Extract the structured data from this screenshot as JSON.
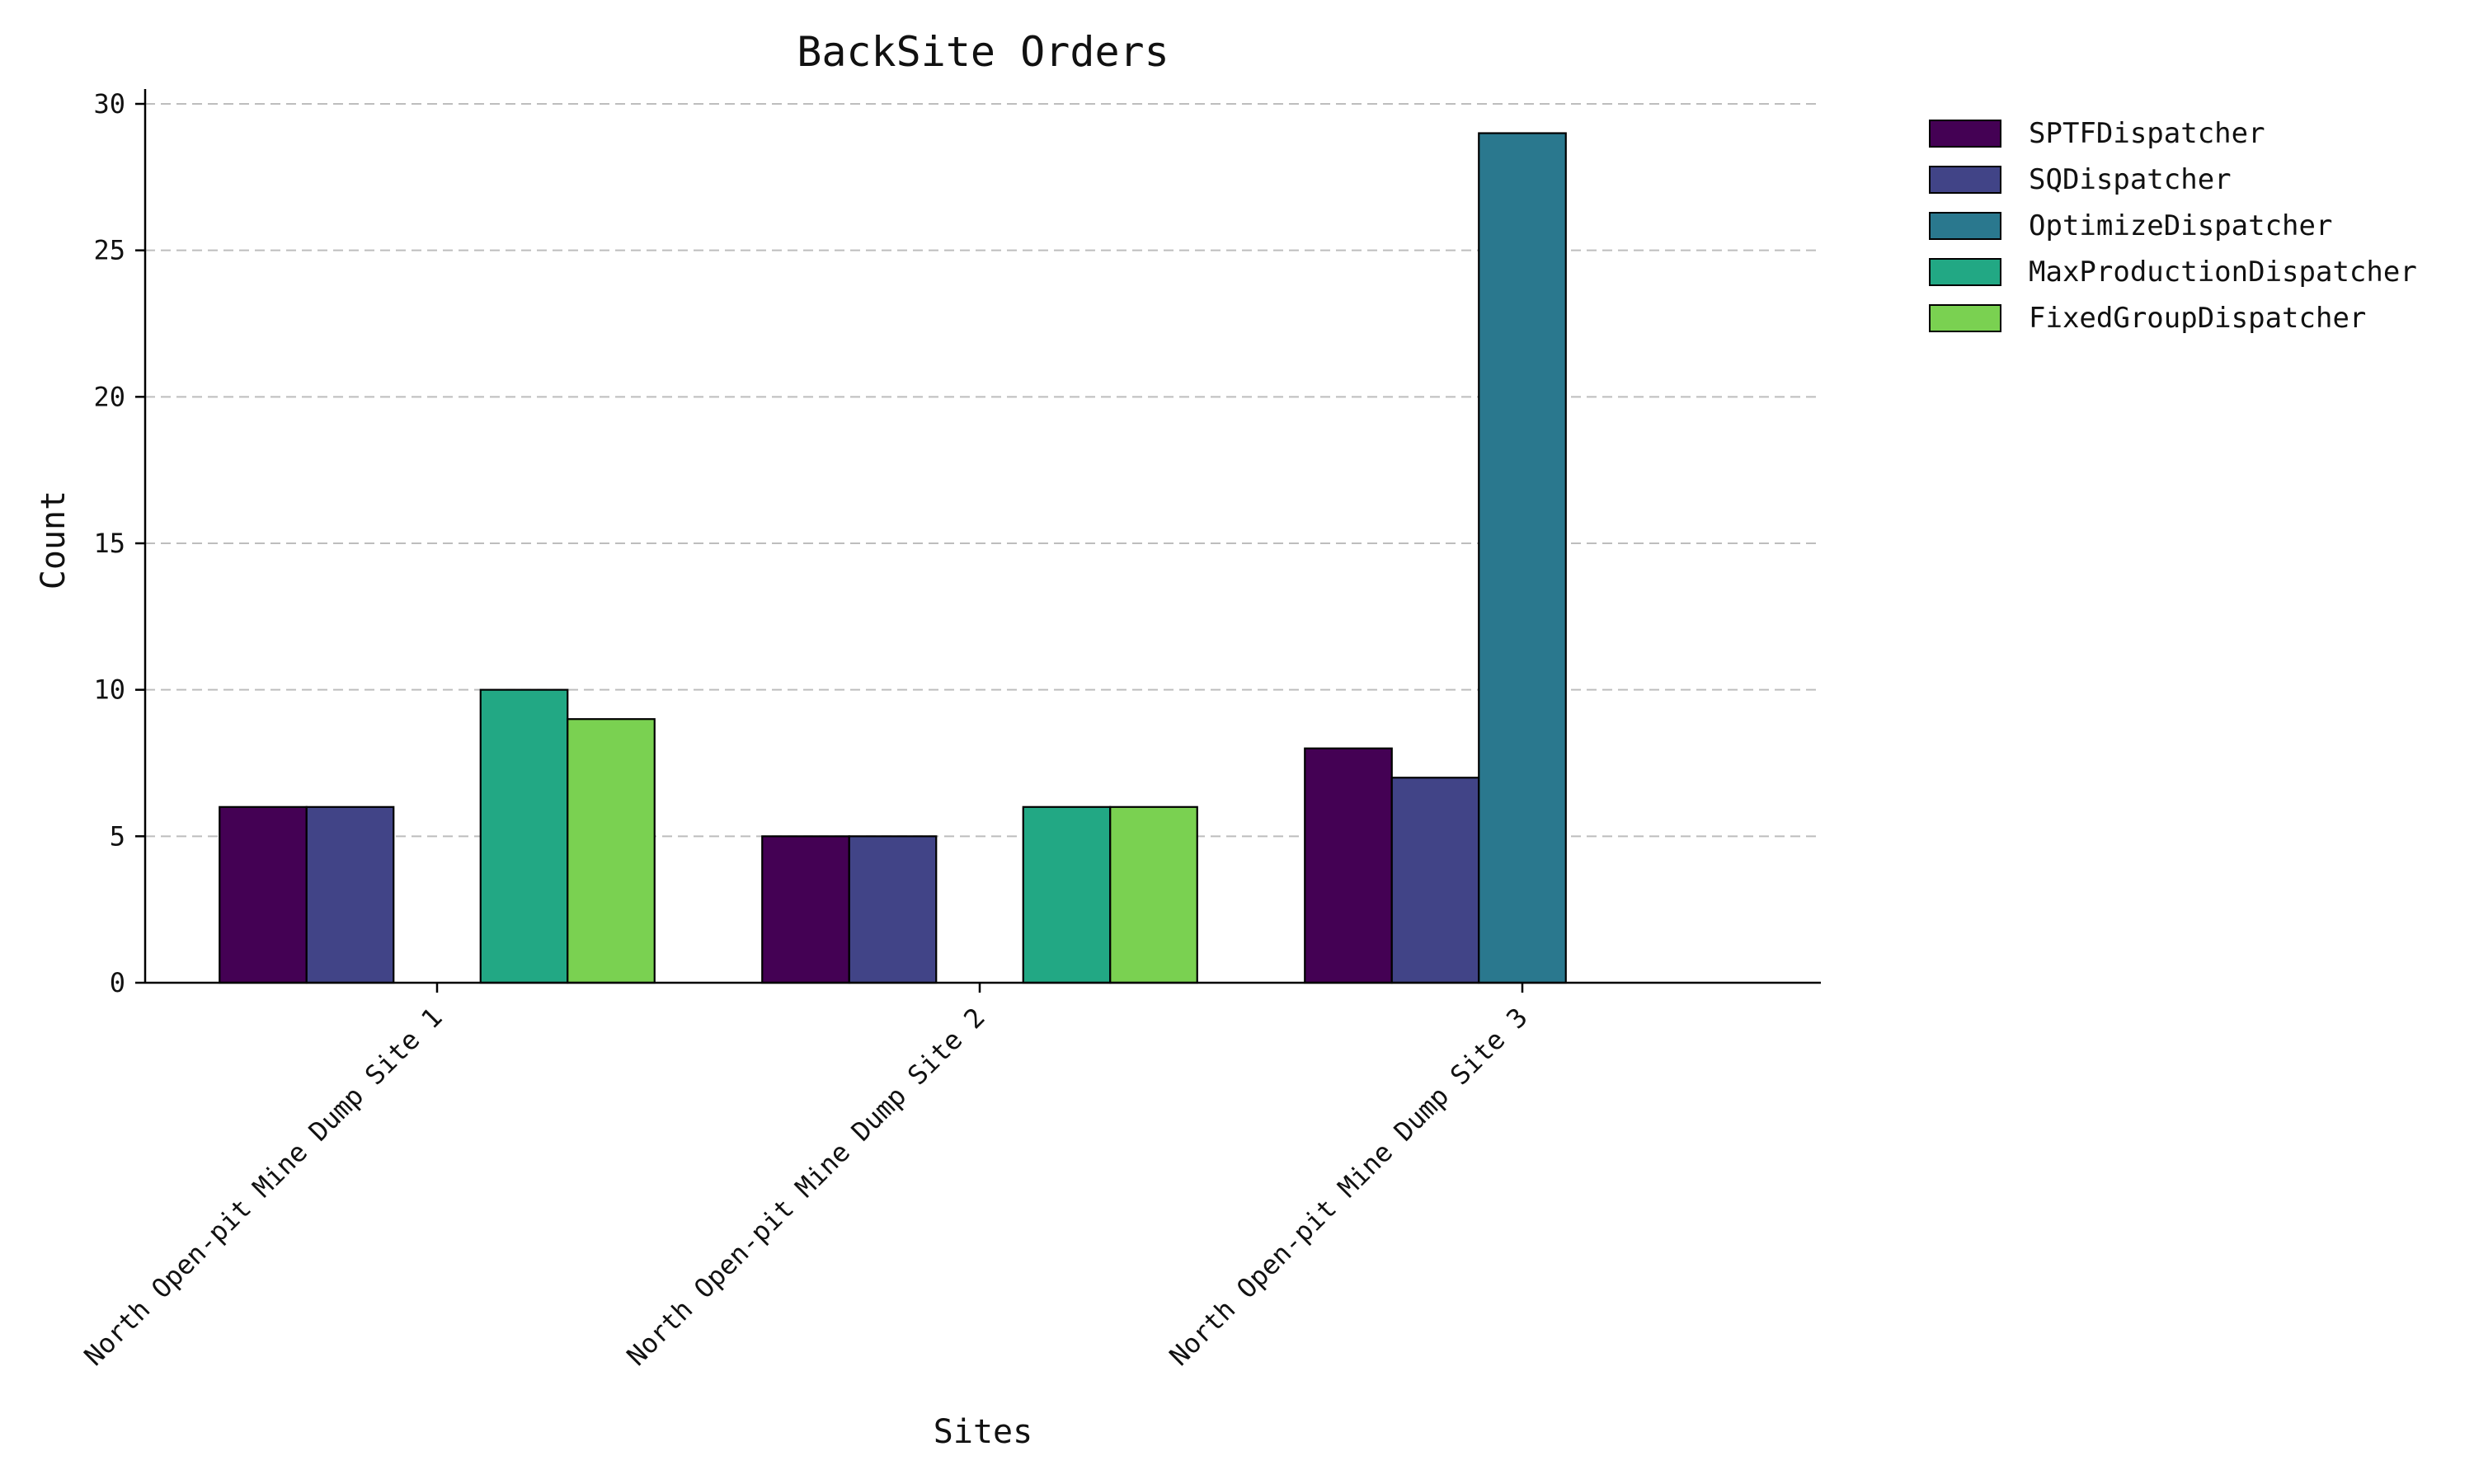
{
  "chart_data": {
    "type": "bar",
    "title": "BackSite Orders",
    "xlabel": "Sites",
    "ylabel": "Count",
    "categories": [
      "North Open-pit Mine Dump Site 1",
      "North Open-pit Mine Dump Site 2",
      "North Open-pit Mine Dump Site 3"
    ],
    "series": [
      {
        "name": "SPTFDispatcher",
        "values": [
          6,
          5,
          8
        ],
        "color": "#440154"
      },
      {
        "name": "SQDispatcher",
        "values": [
          6,
          5,
          7
        ],
        "color": "#414487"
      },
      {
        "name": "OptimizeDispatcher",
        "values": [
          0,
          0,
          29
        ],
        "color": "#2a788e"
      },
      {
        "name": "MaxProductionDispatcher",
        "values": [
          10,
          6,
          0
        ],
        "color": "#22a884"
      },
      {
        "name": "FixedGroupDispatcher",
        "values": [
          9,
          6,
          0
        ],
        "color": "#7ad151"
      }
    ],
    "ylim": [
      0,
      30
    ],
    "yticks": [
      0,
      5,
      10,
      15,
      20,
      25,
      30
    ],
    "grid": "y-dashed",
    "legend_placement": "outside-top-right"
  }
}
